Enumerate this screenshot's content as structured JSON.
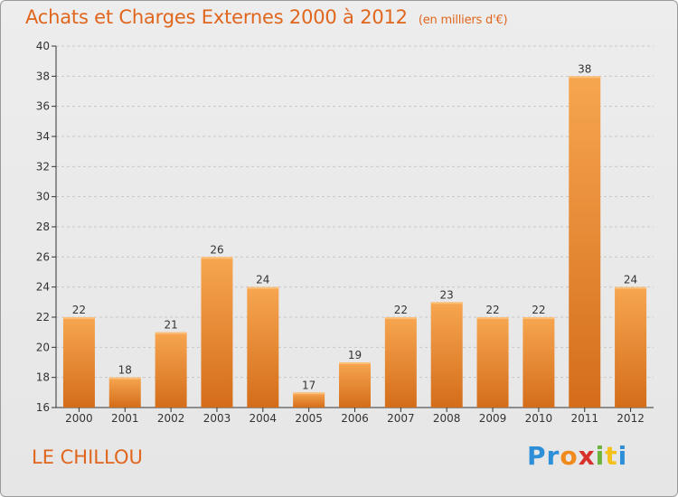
{
  "header": {
    "title": "Achats et Charges Externes 2000 à 2012",
    "unit": "(en milliers d'€)"
  },
  "footer": {
    "town": "LE CHILLOU",
    "logo_parts": [
      "Pr",
      "o",
      "x",
      "i",
      "t",
      "i"
    ]
  },
  "colors": {
    "accent": "#e0661e",
    "bar_light": "#f5a24e",
    "bar_dark": "#d9721b"
  },
  "chart_data": {
    "type": "bar",
    "title": "Achats et Charges Externes 2000 à 2012",
    "subtitle": "(en milliers d'€)",
    "categories": [
      "2000",
      "2001",
      "2002",
      "2003",
      "2004",
      "2005",
      "2006",
      "2007",
      "2008",
      "2009",
      "2010",
      "2011",
      "2012"
    ],
    "values": [
      22,
      18,
      21,
      26,
      24,
      17,
      19,
      22,
      23,
      22,
      22,
      38,
      24
    ],
    "ylim": [
      16,
      40
    ],
    "yticks": [
      16,
      18,
      20,
      22,
      24,
      26,
      28,
      30,
      32,
      34,
      36,
      38,
      40
    ],
    "grid": true,
    "xlabel": "",
    "ylabel": ""
  }
}
